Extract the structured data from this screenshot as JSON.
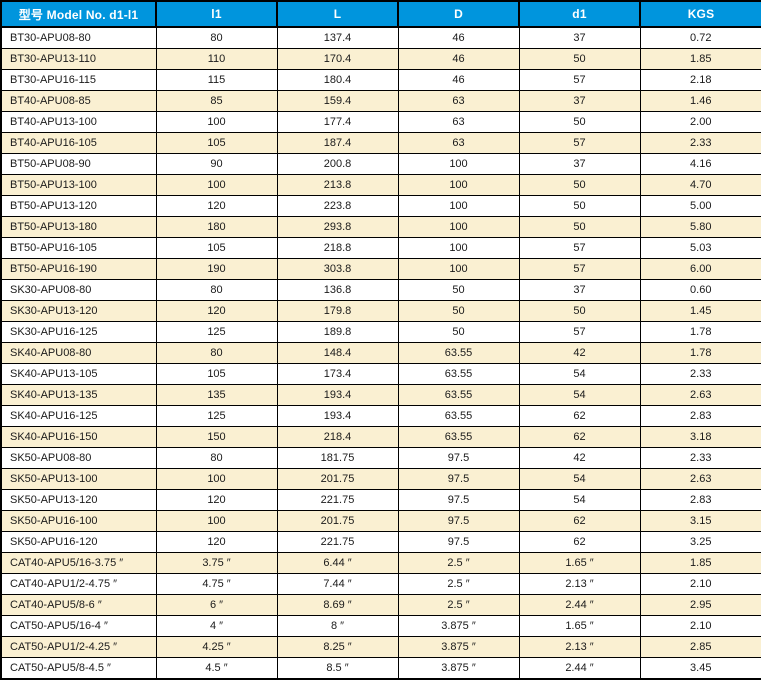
{
  "colors": {
    "header_bg": "#0095dd",
    "header_text": "#ffffff",
    "row_bg": "#ffffff",
    "row_alt_bg": "#faf0d2",
    "border": "#000000",
    "body_text": "#1a1a1a"
  },
  "table": {
    "columns": [
      {
        "label": "型号 Model No. d1-l1"
      },
      {
        "label": "l1"
      },
      {
        "label": "L"
      },
      {
        "label": "D"
      },
      {
        "label": "d1"
      },
      {
        "label": "KGS"
      }
    ],
    "rows": [
      [
        "BT30-APU08-80",
        "80",
        "137.4",
        "46",
        "37",
        "0.72"
      ],
      [
        "BT30-APU13-110",
        "110",
        "170.4",
        "46",
        "50",
        "1.85"
      ],
      [
        "BT30-APU16-115",
        "115",
        "180.4",
        "46",
        "57",
        "2.18"
      ],
      [
        "BT40-APU08-85",
        "85",
        "159.4",
        "63",
        "37",
        "1.46"
      ],
      [
        "BT40-APU13-100",
        "100",
        "177.4",
        "63",
        "50",
        "2.00"
      ],
      [
        "BT40-APU16-105",
        "105",
        "187.4",
        "63",
        "57",
        "2.33"
      ],
      [
        "BT50-APU08-90",
        "90",
        "200.8",
        "100",
        "37",
        "4.16"
      ],
      [
        "BT50-APU13-100",
        "100",
        "213.8",
        "100",
        "50",
        "4.70"
      ],
      [
        "BT50-APU13-120",
        "120",
        "223.8",
        "100",
        "50",
        "5.00"
      ],
      [
        "BT50-APU13-180",
        "180",
        "293.8",
        "100",
        "50",
        "5.80"
      ],
      [
        "BT50-APU16-105",
        "105",
        "218.8",
        "100",
        "57",
        "5.03"
      ],
      [
        "BT50-APU16-190",
        "190",
        "303.8",
        "100",
        "57",
        "6.00"
      ],
      [
        "SK30-APU08-80",
        "80",
        "136.8",
        "50",
        "37",
        "0.60"
      ],
      [
        "SK30-APU13-120",
        "120",
        "179.8",
        "50",
        "50",
        "1.45"
      ],
      [
        "SK30-APU16-125",
        "125",
        "189.8",
        "50",
        "57",
        "1.78"
      ],
      [
        "SK40-APU08-80",
        "80",
        "148.4",
        "63.55",
        "42",
        "1.78"
      ],
      [
        "SK40-APU13-105",
        "105",
        "173.4",
        "63.55",
        "54",
        "2.33"
      ],
      [
        "SK40-APU13-135",
        "135",
        "193.4",
        "63.55",
        "54",
        "2.63"
      ],
      [
        "SK40-APU16-125",
        "125",
        "193.4",
        "63.55",
        "62",
        "2.83"
      ],
      [
        "SK40-APU16-150",
        "150",
        "218.4",
        "63.55",
        "62",
        "3.18"
      ],
      [
        "SK50-APU08-80",
        "80",
        "181.75",
        "97.5",
        "42",
        "2.33"
      ],
      [
        "SK50-APU13-100",
        "100",
        "201.75",
        "97.5",
        "54",
        "2.63"
      ],
      [
        "SK50-APU13-120",
        "120",
        "221.75",
        "97.5",
        "54",
        "2.83"
      ],
      [
        "SK50-APU16-100",
        "100",
        "201.75",
        "97.5",
        "62",
        "3.15"
      ],
      [
        "SK50-APU16-120",
        "120",
        "221.75",
        "97.5",
        "62",
        "3.25"
      ],
      [
        "CAT40-APU5/16-3.75 ″",
        "3.75 ″",
        "6.44 ″",
        "2.5 ″",
        "1.65 ″",
        "1.85"
      ],
      [
        "CAT40-APU1/2-4.75 ″",
        "4.75 ″",
        "7.44 ″",
        "2.5 ″",
        "2.13 ″",
        "2.10"
      ],
      [
        "CAT40-APU5/8-6 ″",
        "6 ″",
        "8.69 ″",
        "2.5 ″",
        "2.44 ″",
        "2.95"
      ],
      [
        "CAT50-APU5/16-4 ″",
        "4 ″",
        "8 ″",
        "3.875 ″",
        "1.65 ″",
        "2.10"
      ],
      [
        "CAT50-APU1/2-4.25 ″",
        "4.25 ″",
        "8.25 ″",
        "3.875 ″",
        "2.13 ″",
        "2.85"
      ],
      [
        "CAT50-APU5/8-4.5 ″",
        "4.5 ″",
        "8.5 ″",
        "3.875 ″",
        "2.44 ″",
        "3.45"
      ]
    ]
  }
}
